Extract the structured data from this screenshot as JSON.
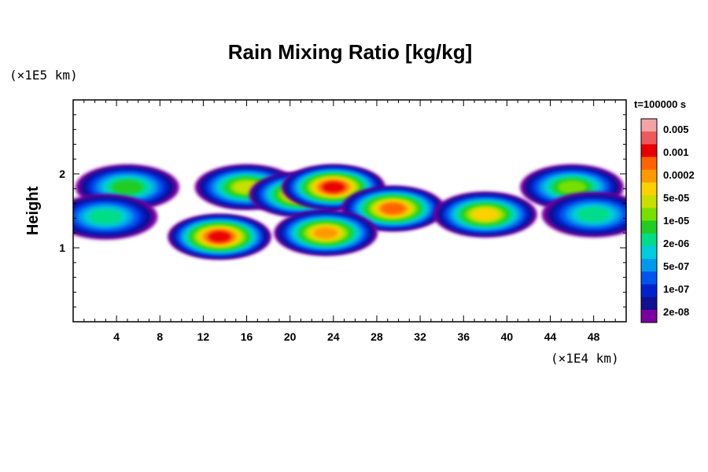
{
  "chart_data": {
    "type": "heatmap",
    "title": "Rain Mixing Ratio [kg/kg]",
    "ylabel": "Height",
    "xunit": "(×1E4 km)",
    "yunit": "(×1E5 km)",
    "time_label": "t=100000 s",
    "xlim": [
      0,
      51
    ],
    "ylim": [
      0,
      3
    ],
    "x_ticks": [
      4,
      8,
      12,
      16,
      20,
      24,
      28,
      32,
      36,
      40,
      44,
      48
    ],
    "y_ticks": [
      1,
      2
    ],
    "colorbar": {
      "labels": [
        "0.005",
        "0.001",
        "0.0002",
        "5e-05",
        "1e-05",
        "2e-06",
        "5e-07",
        "1e-07",
        "2e-08"
      ],
      "colors": [
        "#f4a3a3",
        "#ee5a5a",
        "#e80000",
        "#ff6400",
        "#ff9900",
        "#ffd000",
        "#c8e000",
        "#78e000",
        "#22cc22",
        "#00dd88",
        "#00ccdd",
        "#0099ee",
        "#0055ee",
        "#0022cc",
        "#101090",
        "#7a00a0"
      ]
    },
    "features": [
      {
        "x": 5,
        "y": 1.82,
        "level": 7
      },
      {
        "x": 16,
        "y": 1.82,
        "level": 9
      },
      {
        "x": 21,
        "y": 1.72,
        "level": 11
      },
      {
        "x": 24,
        "y": 1.82,
        "level": 13
      },
      {
        "x": 29.5,
        "y": 1.53,
        "level": 12
      },
      {
        "x": 13.5,
        "y": 1.15,
        "level": 13
      },
      {
        "x": 23.3,
        "y": 1.2,
        "level": 11
      },
      {
        "x": 38,
        "y": 1.45,
        "level": 10
      },
      {
        "x": 46,
        "y": 1.82,
        "level": 8
      },
      {
        "x": 3,
        "y": 1.42,
        "level": 6
      },
      {
        "x": 48,
        "y": 1.45,
        "level": 6
      }
    ]
  }
}
